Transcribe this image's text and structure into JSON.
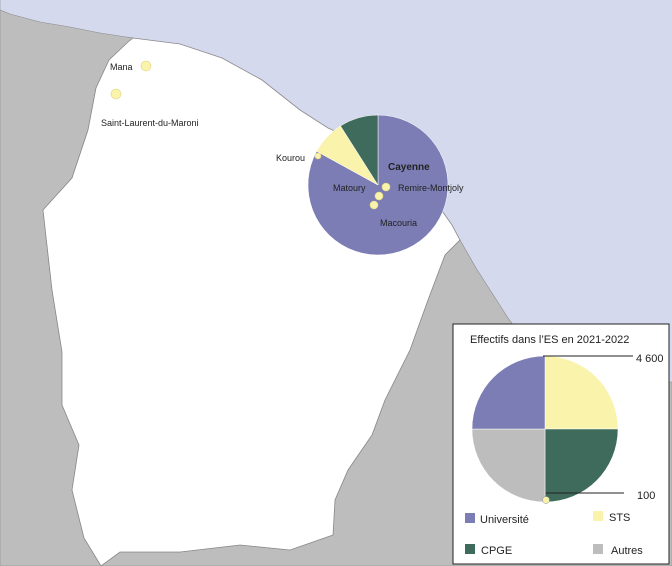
{
  "map": {
    "colors": {
      "sea": "#d4d9ee",
      "neighbour_land": "#bdbdbd",
      "territory": "#ffffff",
      "border": "#8a8a8a"
    },
    "places": [
      {
        "name": "Mana",
        "icon": "small-circle-icon"
      },
      {
        "name": "Saint-Laurent-du-Maroni",
        "icon": "small-circle-icon"
      },
      {
        "name": "Kourou",
        "icon": "small-circle-icon"
      },
      {
        "name": "Cayenne",
        "icon": "pie-symbol"
      },
      {
        "name": "Matoury",
        "icon": "small-circle-icon"
      },
      {
        "name": "Remire-Montjoly",
        "icon": "small-circle-icon"
      },
      {
        "name": "Macouria",
        "icon": "small-circle-icon"
      }
    ]
  },
  "legend": {
    "title": "Effectifs dans l’ES en 2021-2022",
    "size_max_label": "4 600",
    "size_min_label": "100",
    "categories": [
      {
        "label": "Université",
        "color": "#7b7db4"
      },
      {
        "label": "STS",
        "color": "#faf3ab"
      },
      {
        "label": "CPGE",
        "color": "#3f6b5c"
      },
      {
        "label": "Autres",
        "color": "#bdbdbd"
      }
    ]
  },
  "chart_data": {
    "type": "pie",
    "title": "Effectifs dans l’ES en 2021-2022",
    "categories": [
      "Université",
      "STS",
      "CPGE",
      "Autres"
    ],
    "series": [
      {
        "name": "Cayenne",
        "values": [
          83,
          8,
          9,
          0
        ]
      }
    ]
  }
}
